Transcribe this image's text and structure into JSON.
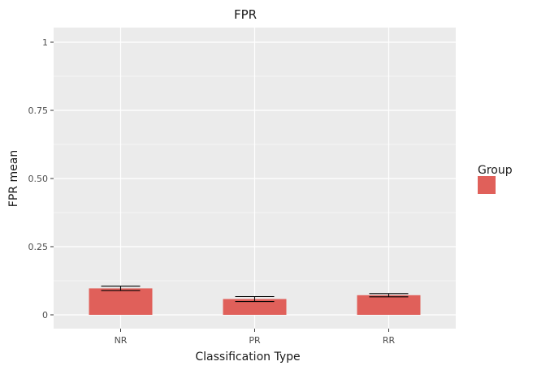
{
  "chart_data": {
    "type": "bar",
    "title": "FPR",
    "xlabel": "Classification Type",
    "ylabel": "FPR mean",
    "categories": [
      "NR",
      "PR",
      "RR"
    ],
    "series": [
      {
        "values": [
          0.097,
          0.058,
          0.072
        ],
        "error_low": [
          0.089,
          0.049,
          0.066
        ],
        "error_high": [
          0.105,
          0.067,
          0.078
        ]
      }
    ],
    "ylim": [
      0,
      1
    ],
    "yticks": [
      0,
      0.25,
      0.5,
      0.75,
      1
    ],
    "ytick_labels": [
      "0",
      "0.25",
      "0.50",
      "0.75",
      "1"
    ],
    "grid": true,
    "legend": {
      "title": "Group",
      "placement": "right"
    },
    "colors": {
      "bar": "#e0605a",
      "panel": "#ebebeb",
      "grid_major": "#ffffff",
      "error_bar": "#000000"
    }
  }
}
